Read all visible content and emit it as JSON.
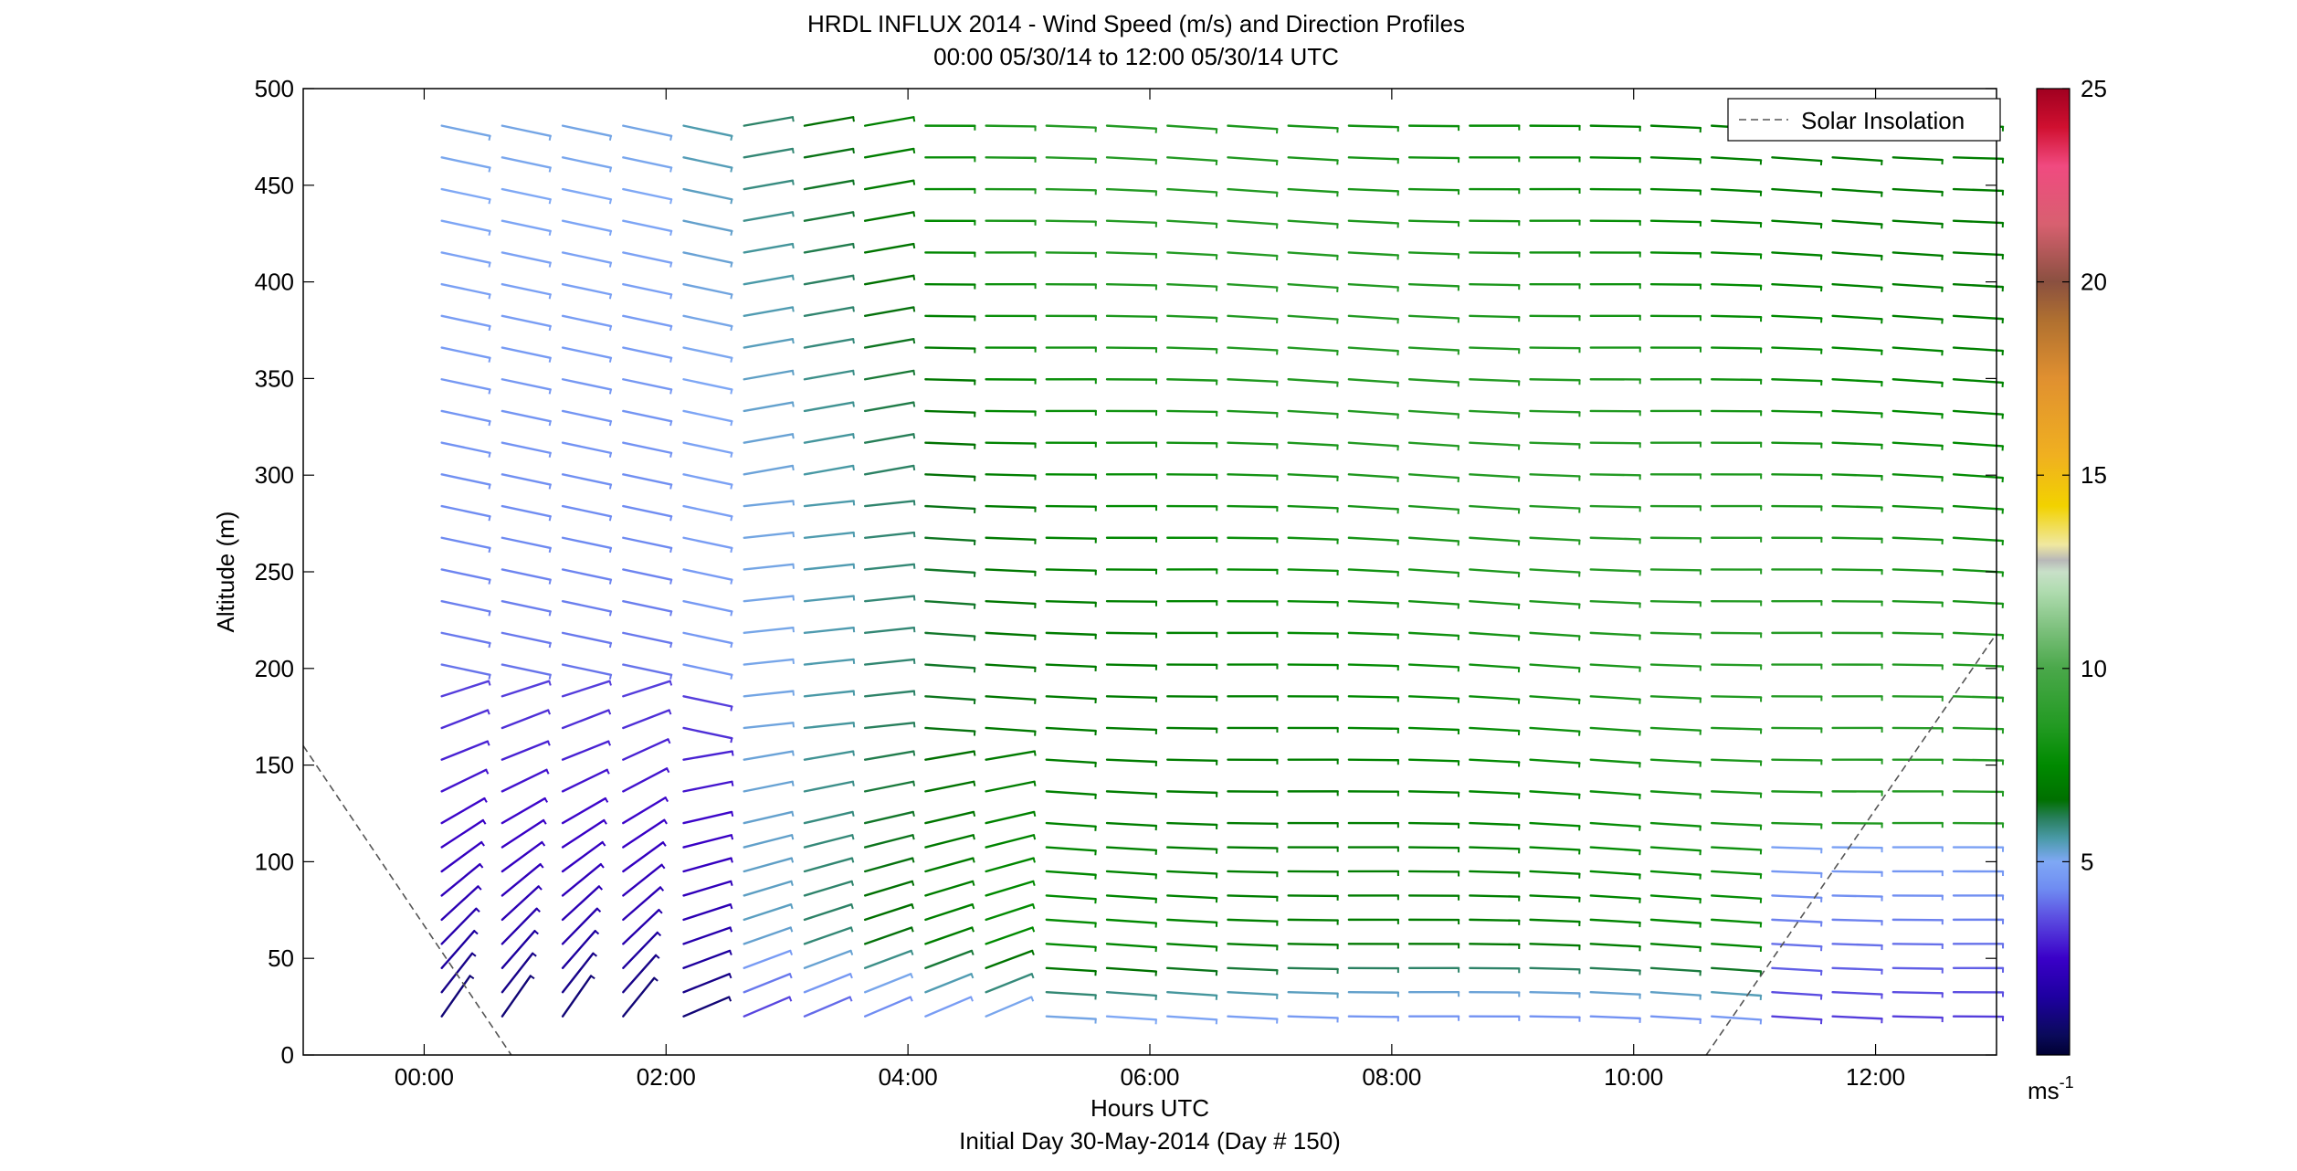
{
  "chart_data": {
    "type": "wind-barb-profile",
    "title": "HRDL INFLUX 2014 - Wind Speed (m/s) and Direction Profiles",
    "subtitle": "00:00 05/30/14 to 12:00 05/30/14  UTC",
    "xlabel": "Hours UTC",
    "xlabel2": "Initial Day 30-May-2014 (Day # 150)",
    "ylabel": "Altitude (m)",
    "xlim": [
      -1.0,
      13.0
    ],
    "ylim": [
      0,
      500
    ],
    "xticks": [
      {
        "value": 0,
        "label": "00:00"
      },
      {
        "value": 2,
        "label": "02:00"
      },
      {
        "value": 4,
        "label": "04:00"
      },
      {
        "value": 6,
        "label": "06:00"
      },
      {
        "value": 8,
        "label": "08:00"
      },
      {
        "value": 10,
        "label": "10:00"
      },
      {
        "value": 12,
        "label": "12:00"
      }
    ],
    "yticks": [
      {
        "value": 0,
        "label": "0"
      },
      {
        "value": 50,
        "label": "50"
      },
      {
        "value": 100,
        "label": "100"
      },
      {
        "value": 150,
        "label": "150"
      },
      {
        "value": 200,
        "label": "200"
      },
      {
        "value": 250,
        "label": "250"
      },
      {
        "value": 300,
        "label": "300"
      },
      {
        "value": 350,
        "label": "350"
      },
      {
        "value": 400,
        "label": "400"
      },
      {
        "value": 450,
        "label": "450"
      },
      {
        "value": 500,
        "label": "500"
      }
    ],
    "legend": {
      "label": "Solar Insolation",
      "position": "top-right",
      "line_style": "dashed",
      "color": "#555555"
    },
    "solar_insolation": {
      "morning_end": [
        [
          -1.0,
          160
        ],
        [
          0.72,
          0
        ]
      ],
      "evening_start": [
        [
          10.6,
          0
        ],
        [
          13.0,
          218
        ]
      ]
    },
    "colorbar": {
      "unit_label": "ms",
      "unit_exponent": "-1",
      "ticks": [
        {
          "value": 5,
          "label": "5"
        },
        {
          "value": 10,
          "label": "10"
        },
        {
          "value": 15,
          "label": "15"
        },
        {
          "value": 20,
          "label": "20"
        },
        {
          "value": 25,
          "label": "25"
        }
      ],
      "range": [
        0,
        25
      ],
      "colormap": [
        [
          0.0,
          "#000033"
        ],
        [
          0.5,
          "#0a0a5a"
        ],
        [
          1.5,
          "#1e00a0"
        ],
        [
          2.5,
          "#3a00c8"
        ],
        [
          3.5,
          "#5a4ae0"
        ],
        [
          4.3,
          "#6f8cf2"
        ],
        [
          5.0,
          "#7fa8f5"
        ],
        [
          5.6,
          "#4a9aa8"
        ],
        [
          6.1,
          "#2a8060"
        ],
        [
          6.6,
          "#007000"
        ],
        [
          7.5,
          "#008a00"
        ],
        [
          8.5,
          "#229a22"
        ],
        [
          10.0,
          "#4aa84a"
        ],
        [
          11.0,
          "#7cc07c"
        ],
        [
          12.0,
          "#b0dcb0"
        ],
        [
          12.5,
          "#c8e0c8"
        ],
        [
          12.8,
          "#b8b8b8"
        ],
        [
          13.2,
          "#f0e8a0"
        ],
        [
          14.2,
          "#f2d200"
        ],
        [
          15.5,
          "#f0b020"
        ],
        [
          17.5,
          "#e09030"
        ],
        [
          19.0,
          "#b07030"
        ],
        [
          20.0,
          "#8a5040"
        ],
        [
          21.5,
          "#d86070"
        ],
        [
          23.0,
          "#f04a80"
        ],
        [
          24.0,
          "#d01030"
        ],
        [
          25.0,
          "#a00020"
        ]
      ]
    }
  }
}
